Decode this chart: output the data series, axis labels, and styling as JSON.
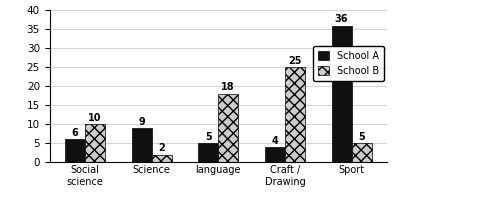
{
  "categories": [
    "Social\nscience",
    "Science",
    "language",
    "Craft /\nDrawing",
    "Sport"
  ],
  "school_a": [
    6,
    9,
    5,
    4,
    36
  ],
  "school_b": [
    10,
    2,
    18,
    25,
    5
  ],
  "color_a": "#111111",
  "color_b": "#cccccc",
  "hatch_a": "",
  "hatch_b": "xxx",
  "ylim": [
    0,
    40
  ],
  "yticks": [
    0,
    5,
    10,
    15,
    20,
    25,
    30,
    35,
    40
  ],
  "legend_a": "School A",
  "legend_b": "School B",
  "bar_width": 0.3,
  "figsize": [
    4.96,
    2.08
  ],
  "dpi": 100
}
